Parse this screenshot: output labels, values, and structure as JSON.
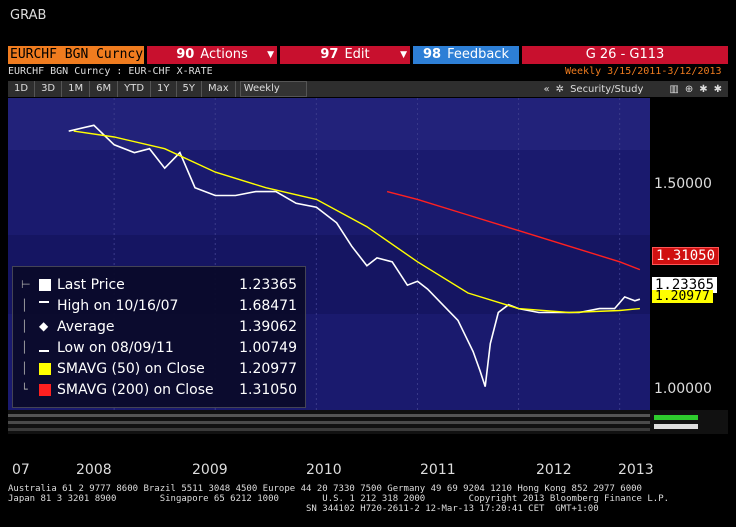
{
  "window": {
    "title": "GRAB"
  },
  "toolbar": {
    "security": "EURCHF BGN Curncy",
    "actions": {
      "num": "90",
      "label": "Actions"
    },
    "edit": {
      "num": "97",
      "label": "Edit"
    },
    "feedback": {
      "num": "98",
      "label": "Feedback"
    },
    "page": "G 26 - G113"
  },
  "subheader": {
    "security_desc": "EURCHF BGN Curncy : EUR-CHF X-RATE",
    "period": "Weekly  3/15/2011-3/12/2013"
  },
  "range": {
    "buttons": [
      "1D",
      "3D",
      "1M",
      "6M",
      "YTD",
      "1Y",
      "5Y",
      "Max"
    ],
    "frequency": "Weekly",
    "study_label": "Security/Study"
  },
  "legend": {
    "rows": [
      {
        "label": "Last Price",
        "value": "1.23365",
        "color": "#ffffff"
      },
      {
        "label": "High on 10/16/07",
        "value": "1.68471",
        "color": "#ffffff"
      },
      {
        "label": "Average",
        "value": "1.39062",
        "color": "#ffffff"
      },
      {
        "label": "Low on 08/09/11",
        "value": "1.00749",
        "color": "#ffffff"
      },
      {
        "label": "SMAVG (50) on Close",
        "value": "1.20977",
        "color": "#ffff00"
      },
      {
        "label": "SMAVG (200) on Close",
        "value": "1.31050",
        "color": "#ff2020"
      }
    ]
  },
  "yaxis": {
    "ticks": [
      "1.50000",
      "1.00000"
    ]
  },
  "price_tags": {
    "sma200": "1.31050",
    "last": "1.23365",
    "sma50": "1.20977"
  },
  "xaxis": {
    "labels": [
      "07",
      "2008",
      "2009",
      "2010",
      "2011",
      "2012",
      "2013"
    ]
  },
  "footer": {
    "line1": "Australia 61 2 9777 8600 Brazil 5511 3048 4500 Europe 44 20 7330 7500 Germany 49 69 9204 1210 Hong Kong 852 2977 6000",
    "line2": "Japan 81 3 3201 8900        Singapore 65 6212 1000        U.S. 1 212 318 2000        Copyright 2013 Bloomberg Finance L.P.",
    "line3": "                                                       SN 344102 H720-2611-2 12-Mar-13 17:20:41 CET  GMT+1:00"
  },
  "colors": {
    "accent": "#f07c1f",
    "red": "#c8102e",
    "blue": "#2d7fd6",
    "chart_bg": "#1a1a6e"
  },
  "chart_data": {
    "type": "line",
    "x_range": [
      "2007",
      "2013"
    ],
    "ylim": [
      0.95,
      1.75
    ],
    "series": [
      {
        "name": "Last Price",
        "color": "#ffffff",
        "x": [
          2007.55,
          2007.8,
          2008.0,
          2008.2,
          2008.35,
          2008.5,
          2008.65,
          2008.8,
          2009.0,
          2009.2,
          2009.4,
          2009.6,
          2009.8,
          2010.0,
          2010.2,
          2010.35,
          2010.5,
          2010.6,
          2010.75,
          2010.9,
          2011.0,
          2011.1,
          2011.25,
          2011.4,
          2011.55,
          2011.62,
          2011.67,
          2011.72,
          2011.8,
          2011.9,
          2012.0,
          2012.2,
          2012.4,
          2012.6,
          2012.8,
          2012.95,
          2013.05,
          2013.15,
          2013.2
        ],
        "y": [
          1.665,
          1.68,
          1.63,
          1.61,
          1.62,
          1.57,
          1.61,
          1.52,
          1.5,
          1.5,
          1.51,
          1.51,
          1.48,
          1.47,
          1.43,
          1.37,
          1.32,
          1.34,
          1.33,
          1.27,
          1.28,
          1.26,
          1.22,
          1.18,
          1.1,
          1.05,
          1.01,
          1.12,
          1.2,
          1.22,
          1.21,
          1.2,
          1.2,
          1.2,
          1.21,
          1.21,
          1.24,
          1.23,
          1.234
        ]
      },
      {
        "name": "SMAVG (50) on Close",
        "color": "#ffff00",
        "x": [
          2007.6,
          2008.0,
          2008.5,
          2009.0,
          2009.5,
          2010.0,
          2010.5,
          2011.0,
          2011.5,
          2012.0,
          2012.5,
          2013.0,
          2013.2
        ],
        "y": [
          1.665,
          1.65,
          1.62,
          1.56,
          1.52,
          1.49,
          1.42,
          1.33,
          1.25,
          1.21,
          1.2,
          1.205,
          1.21
        ]
      },
      {
        "name": "SMAVG (200) on Close",
        "color": "#ff2020",
        "x": [
          2010.7,
          2011.0,
          2011.5,
          2012.0,
          2012.5,
          2013.0,
          2013.2
        ],
        "y": [
          1.51,
          1.49,
          1.45,
          1.41,
          1.37,
          1.33,
          1.31
        ]
      }
    ]
  }
}
